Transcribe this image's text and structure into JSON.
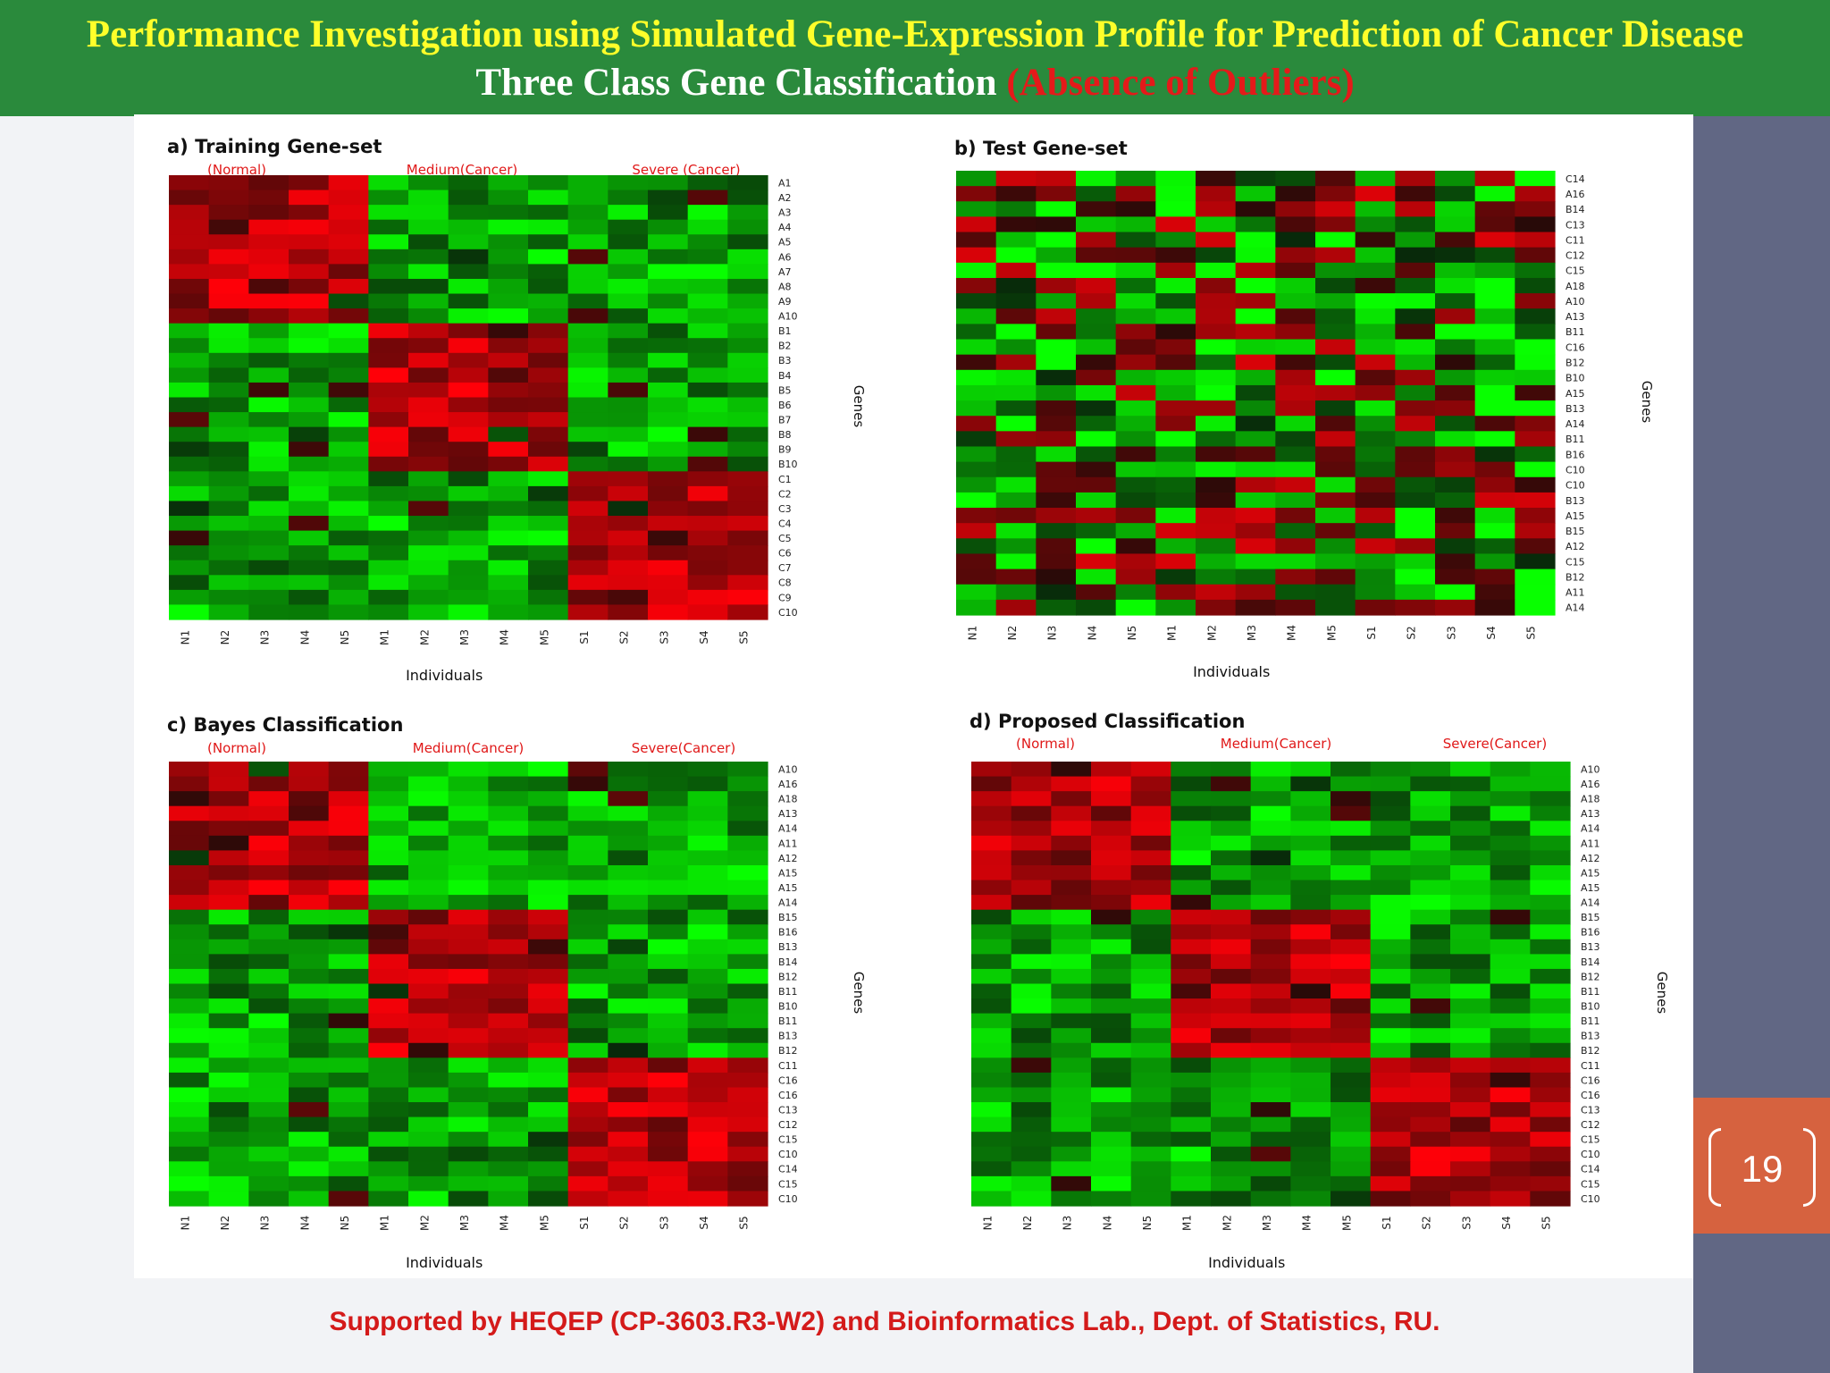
{
  "header": {
    "title": "Performance Investigation using  Simulated Gene-Expression Profile for Prediction of Cancer Disease",
    "subtitle_main": "Three Class Gene Classification ",
    "subtitle_red": "(Absence of Outliers)"
  },
  "page_number": "19",
  "footer": "Supported by HEQEP (CP-3603.R3-W2) and Bioinformatics Lab., Dept. of Statistics, RU.",
  "colors": {
    "header_bg": "#2a8a3c",
    "title_yellow": "#ffff2a",
    "outlier_red": "#e41a1a",
    "band": "#616784",
    "page_tab": "#d6623f",
    "low_expr": "#00ff00",
    "high_expr": "#ff0000"
  },
  "chart_data": [
    {
      "type": "heatmap",
      "title": "a) Training Gene-set",
      "group_labels": [
        "(Normal)",
        "Medium(Cancer)",
        "Severe (Cancer)"
      ],
      "xlabel": "Individuals",
      "ylabel": "Genes",
      "columns": [
        "N1",
        "N2",
        "N3",
        "N4",
        "N5",
        "M1",
        "M2",
        "M3",
        "M4",
        "M5",
        "S1",
        "S2",
        "S3",
        "S4",
        "S5"
      ],
      "rows": [
        "A1",
        "A2",
        "A3",
        "A4",
        "A5",
        "A6",
        "A7",
        "A8",
        "A9",
        "A10",
        "B1",
        "B2",
        "B3",
        "B4",
        "B5",
        "B6",
        "B7",
        "B8",
        "B9",
        "B10",
        "C1",
        "C2",
        "C3",
        "C4",
        "C5",
        "C6",
        "C7",
        "C8",
        "C9",
        "C10"
      ],
      "pattern": "block-diagonal"
    },
    {
      "type": "heatmap",
      "title": "b) Test Gene-set",
      "xlabel": "Individuals",
      "ylabel": "Genes",
      "columns": [
        "N1",
        "N2",
        "N3",
        "N4",
        "N5",
        "M1",
        "M2",
        "M3",
        "M4",
        "M5",
        "S1",
        "S2",
        "S3",
        "S4",
        "S5"
      ],
      "rows": [
        "C14",
        "A16",
        "B14",
        "C13",
        "C11",
        "C12",
        "C15",
        "A18",
        "A10",
        "A13",
        "B11",
        "C16",
        "B12",
        "B10",
        "A15",
        "B13",
        "A14",
        "B11",
        "B16",
        "C10",
        "C10",
        "B13",
        "A15",
        "B15",
        "A12",
        "C15",
        "B12",
        "A11",
        "A14"
      ],
      "pattern": "random"
    },
    {
      "type": "heatmap",
      "title": "c) Bayes Classification",
      "group_labels": [
        "(Normal)",
        "Medium(Cancer)",
        "Severe(Cancer)"
      ],
      "xlabel": "Individuals",
      "ylabel": "Genes",
      "columns": [
        "N1",
        "N2",
        "N3",
        "N4",
        "N5",
        "M1",
        "M2",
        "M3",
        "M4",
        "M5",
        "S1",
        "S2",
        "S3",
        "S4",
        "S5"
      ],
      "rows": [
        "A10",
        "A16",
        "A18",
        "A13",
        "A14",
        "A11",
        "A12",
        "A15",
        "A15",
        "A14",
        "B15",
        "B16",
        "B13",
        "B14",
        "B12",
        "B11",
        "B10",
        "B11",
        "B13",
        "B12",
        "C11",
        "C16",
        "C16",
        "C13",
        "C12",
        "C15",
        "C10",
        "C14",
        "C15",
        "C10"
      ],
      "pattern": "block-diagonal"
    },
    {
      "type": "heatmap",
      "title": "d) Proposed Classification",
      "group_labels": [
        "(Normal)",
        "Medium(Cancer)",
        "Severe(Cancer)"
      ],
      "xlabel": "Individuals",
      "ylabel": "Genes",
      "columns": [
        "N1",
        "N2",
        "N3",
        "N4",
        "N5",
        "M1",
        "M2",
        "M3",
        "M4",
        "M5",
        "S1",
        "S2",
        "S3",
        "S4",
        "S5"
      ],
      "rows": [
        "A10",
        "A16",
        "A18",
        "A13",
        "A14",
        "A11",
        "A12",
        "A15",
        "A15",
        "A14",
        "B15",
        "B16",
        "B13",
        "B14",
        "B12",
        "B11",
        "B10",
        "B11",
        "B13",
        "B12",
        "C11",
        "C16",
        "C16",
        "C13",
        "C12",
        "C15",
        "C10",
        "C14",
        "C15",
        "C10"
      ],
      "pattern": "block-diagonal"
    }
  ]
}
